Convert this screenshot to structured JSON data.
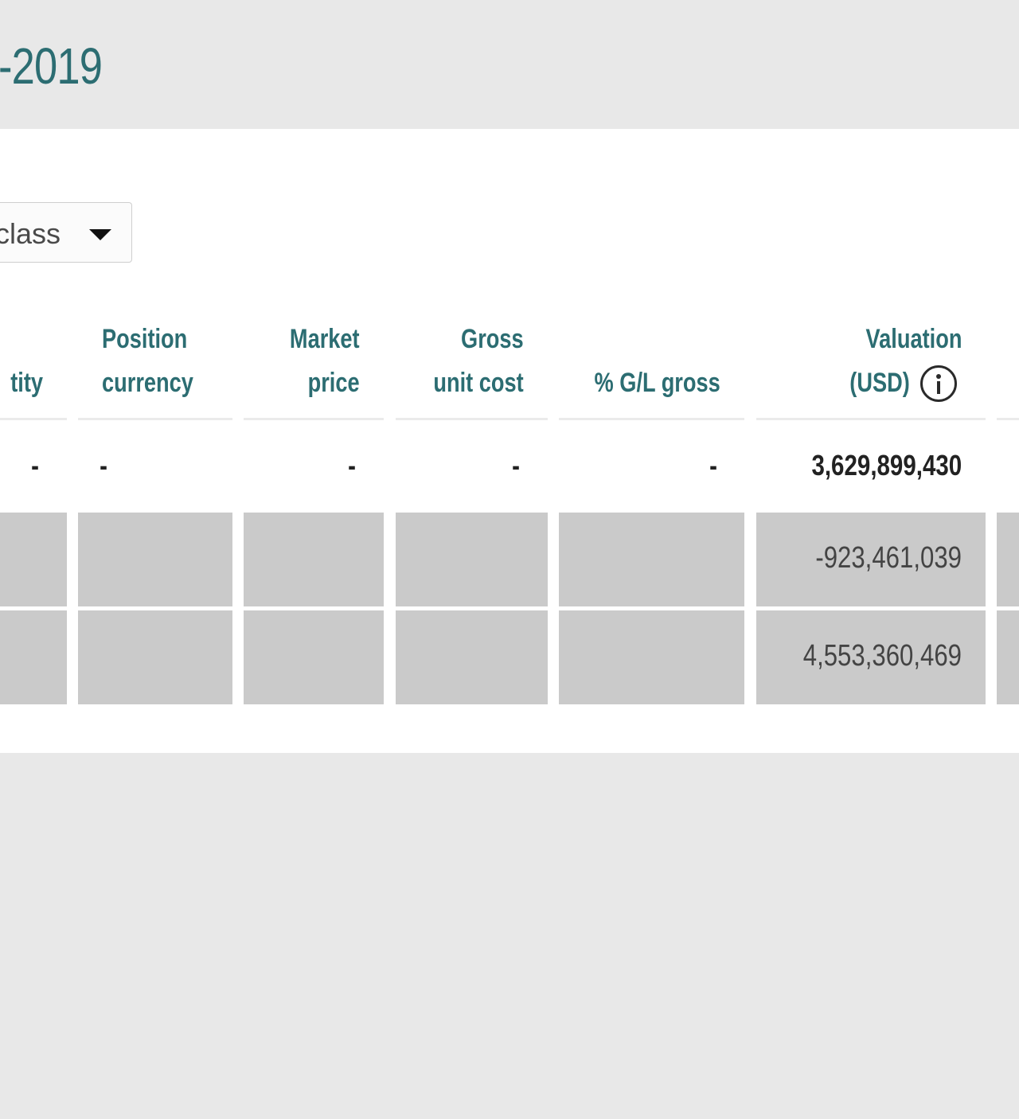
{
  "header": {
    "title_fragment": "-2019"
  },
  "group_by": {
    "selected_value": "class"
  },
  "table": {
    "columns": {
      "quantity_fragment": "tity",
      "position_currency": [
        "Position",
        "currency"
      ],
      "market_price": [
        "Market",
        "price"
      ],
      "gross_unit_cost": [
        "Gross",
        "unit cost"
      ],
      "gl_gross": "% G/L gross",
      "valuation": [
        "Valuation",
        "(USD)"
      ]
    },
    "total_row": {
      "quantity": "-",
      "position_currency": "-",
      "market_price": "-",
      "gross_unit_cost": "-",
      "gl_gross": "-",
      "valuation": "3,629,899,430"
    },
    "sub_rows": [
      {
        "valuation": "-923,461,039"
      },
      {
        "valuation": "4,553,360,469"
      }
    ]
  }
}
